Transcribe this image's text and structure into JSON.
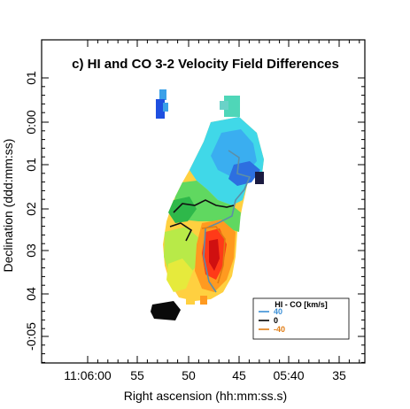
{
  "figure": {
    "title": "c) HI and CO 3-2 Velocity Field Differences",
    "xlabel": "Right ascension (hh:mm:ss.s)",
    "ylabel": "Declination (ddd:mm:ss)"
  },
  "axes": {
    "x_ticks": [
      "11:06:00",
      "55",
      "50",
      "45",
      "05:40",
      "35"
    ],
    "y_ticks": [
      "01",
      "0:00",
      "01",
      "02",
      "03",
      "04",
      "-0:05"
    ]
  },
  "legend": {
    "title": "HI - CO [km/s]",
    "entries": [
      {
        "label": "40",
        "color": "#3a8fd6"
      },
      {
        "label": "0",
        "color": "#000000"
      },
      {
        "label": "-40",
        "color": "#e07b12"
      }
    ]
  },
  "colors": {
    "contour_pos": "#5c8fa8",
    "contour_zero": "#111111",
    "contour_neg": "#e07b12"
  }
}
